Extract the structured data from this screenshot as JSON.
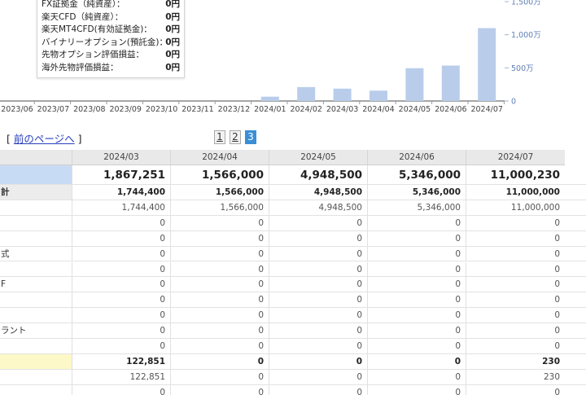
{
  "chart": {
    "x_ticks": [
      "2023/06",
      "2023/07",
      "2023/08",
      "2023/09",
      "2023/10",
      "2023/11",
      "2023/12",
      "2024/01",
      "2024/02",
      "2024/03",
      "2024/04",
      "2024/05",
      "2024/06",
      "2024/07"
    ],
    "y_ticks": [
      "0",
      "500万",
      "1,000万",
      "1,500万"
    ],
    "bar_color": "#b9cdeb",
    "tooltip": [
      {
        "label": "FX証拠金（純資産）：",
        "value": "0円"
      },
      {
        "label": "楽天CFD（純資産）：",
        "value": "0円"
      },
      {
        "label": "楽天MT4CFD(有効証拠金)：",
        "value": "0円"
      },
      {
        "label": "バイナリーオプション(預託金)：",
        "value": "0円"
      },
      {
        "label": "先物オプション評価損益：",
        "value": "0円"
      },
      {
        "label": "海外先物評価損益：",
        "value": "0円"
      }
    ]
  },
  "chart_data": {
    "type": "bar",
    "categories": [
      "2023/06",
      "2023/07",
      "2023/08",
      "2023/09",
      "2023/10",
      "2023/11",
      "2023/12",
      "2024/01",
      "2024/02",
      "2024/03",
      "2024/04",
      "2024/05",
      "2024/06",
      "2024/07"
    ],
    "values": [
      0,
      0,
      0,
      0,
      0,
      0,
      0,
      650000,
      2100000,
      1867251,
      1566000,
      4948500,
      5346000,
      11000230
    ],
    "ylim": [
      0,
      15000000
    ],
    "y_ticks": [
      0,
      5000000,
      10000000,
      15000000
    ],
    "grid": false
  },
  "pager": {
    "prefix": "[",
    "prev_label": "前のページへ",
    "suffix": "]",
    "pages": [
      "1",
      "2",
      "3"
    ],
    "current": "3"
  },
  "table": {
    "columns": [
      "2024/03",
      "2024/04",
      "2024/05",
      "2024/06",
      "2024/07"
    ],
    "rows": [
      {
        "label": "",
        "style": "blue",
        "bold": true,
        "big": true,
        "values": [
          "1,867,251",
          "1,566,000",
          "4,948,500",
          "5,346,000",
          "11,000,230"
        ]
      },
      {
        "label": "計",
        "style": "sub",
        "bold": true,
        "values": [
          "1,744,400",
          "1,566,000",
          "4,948,500",
          "5,346,000",
          "11,000,000"
        ]
      },
      {
        "label": "",
        "style": "",
        "bold": false,
        "values": [
          "1,744,400",
          "1,566,000",
          "4,948,500",
          "5,346,000",
          "11,000,000"
        ]
      },
      {
        "label": "",
        "style": "",
        "bold": false,
        "values": [
          "0",
          "0",
          "0",
          "0",
          "0"
        ]
      },
      {
        "label": "",
        "style": "",
        "bold": false,
        "values": [
          "0",
          "0",
          "0",
          "0",
          "0"
        ]
      },
      {
        "label": "式",
        "style": "",
        "bold": false,
        "values": [
          "0",
          "0",
          "0",
          "0",
          "0"
        ]
      },
      {
        "label": "",
        "style": "",
        "bold": false,
        "values": [
          "0",
          "0",
          "0",
          "0",
          "0"
        ]
      },
      {
        "label": "F",
        "style": "",
        "bold": false,
        "values": [
          "0",
          "0",
          "0",
          "0",
          "0"
        ]
      },
      {
        "label": "",
        "style": "",
        "bold": false,
        "values": [
          "0",
          "0",
          "0",
          "0",
          "0"
        ]
      },
      {
        "label": "",
        "style": "",
        "bold": false,
        "values": [
          "0",
          "0",
          "0",
          "0",
          "0"
        ]
      },
      {
        "label": "ラント",
        "style": "",
        "bold": false,
        "values": [
          "0",
          "0",
          "0",
          "0",
          "0"
        ]
      },
      {
        "label": "",
        "style": "",
        "bold": false,
        "values": [
          "0",
          "0",
          "0",
          "0",
          "0"
        ]
      },
      {
        "label": "",
        "style": "yellow",
        "bold": true,
        "values": [
          "122,851",
          "0",
          "0",
          "0",
          "230"
        ]
      },
      {
        "label": "",
        "style": "",
        "bold": false,
        "values": [
          "122,851",
          "0",
          "0",
          "0",
          "230"
        ]
      },
      {
        "label": "",
        "style": "",
        "bold": false,
        "values": [
          "0",
          "0",
          "0",
          "0",
          "0"
        ]
      }
    ]
  }
}
